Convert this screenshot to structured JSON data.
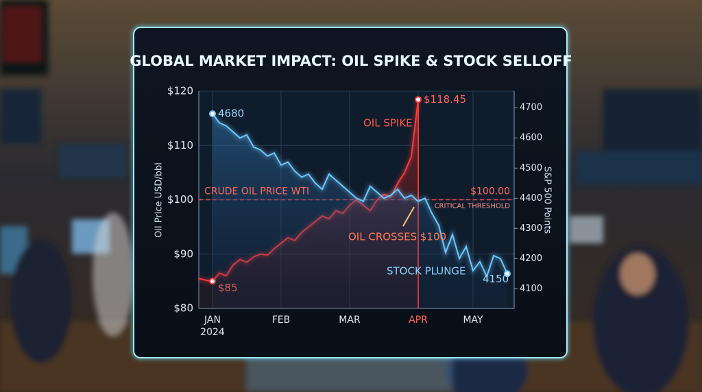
{
  "chart_data": {
    "type": "line",
    "title": "GLOBAL MARKET IMPACT: OIL SPIKE & STOCK SELLOFF",
    "y_label": "Oil Price USD/bbl",
    "y2_label": "S&P 500 Points",
    "xlim": [
      0,
      46
    ],
    "xticks": [
      {
        "value": 2,
        "label": "JAN"
      },
      {
        "value": 12,
        "label": "FEB"
      },
      {
        "value": 22,
        "label": "MAR"
      },
      {
        "value": 32,
        "label": "APR"
      },
      {
        "value": 40,
        "label": "MAY"
      }
    ],
    "year": "2024",
    "ylim": [
      80,
      120
    ],
    "yticks": [
      {
        "value": 80,
        "label": "$80"
      },
      {
        "value": 90,
        "label": "$90"
      },
      {
        "value": 100,
        "label": "$100"
      },
      {
        "value": 110,
        "label": "$110"
      },
      {
        "value": 120,
        "label": "$120"
      }
    ],
    "y2lim": [
      4035,
      4755
    ],
    "y2ticks": [
      4100,
      4200,
      4300,
      4400,
      4500,
      4600,
      4700
    ],
    "grid": true,
    "series": [
      {
        "name": "CRUDE OIL PRICE WTI",
        "color": "#ff3b3b",
        "x": [
          0,
          1,
          2,
          3,
          4,
          5,
          6,
          7,
          8,
          9,
          10,
          11,
          12,
          13,
          14,
          15,
          16,
          17,
          18,
          19,
          20,
          21,
          22,
          23,
          24,
          25,
          26,
          27,
          28,
          29,
          30,
          31,
          32
        ],
        "values": [
          85.5,
          85.2,
          85,
          86.5,
          86,
          88,
          89,
          88.5,
          89.5,
          90,
          89.8,
          91,
          92,
          93,
          92.5,
          94,
          95,
          96,
          97,
          96.5,
          98,
          97.5,
          99,
          100,
          99,
          98,
          100,
          101,
          100.5,
          103,
          105,
          108,
          118.45
        ],
        "labels": [
          {
            "index": 2,
            "label": "$85"
          },
          {
            "index": 32,
            "label": "$118.45"
          }
        ]
      },
      {
        "name": "S&P 500",
        "color": "#6cc8ff",
        "axis": "y2",
        "x": [
          2,
          3,
          4,
          5,
          6,
          7,
          8,
          9,
          10,
          11,
          12,
          13,
          14,
          15,
          16,
          17,
          18,
          19,
          20,
          21,
          22,
          23,
          24,
          25,
          26,
          27,
          28,
          29,
          30,
          31,
          32,
          33,
          34,
          35,
          36,
          37,
          38,
          39,
          40,
          41,
          42,
          43,
          44,
          45
        ],
        "values": [
          4680,
          4650,
          4640,
          4620,
          4600,
          4610,
          4570,
          4560,
          4540,
          4550,
          4510,
          4520,
          4490,
          4470,
          4480,
          4450,
          4430,
          4480,
          4460,
          4440,
          4420,
          4400,
          4390,
          4440,
          4420,
          4400,
          4410,
          4430,
          4400,
          4410,
          4390,
          4400,
          4350,
          4310,
          4220,
          4280,
          4200,
          4240,
          4160,
          4190,
          4140,
          4210,
          4200,
          4150
        ],
        "labels": [
          {
            "index": 0,
            "label": "4680"
          },
          {
            "index": 43,
            "label": "4150"
          }
        ]
      }
    ],
    "threshold": {
      "value": 100,
      "label": "$100.00",
      "name": "CRITICAL THRESHOLD"
    },
    "annotations": [
      "OIL SPIKE",
      "OIL CROSSES $100",
      "STOCK PLUNGE"
    ]
  }
}
